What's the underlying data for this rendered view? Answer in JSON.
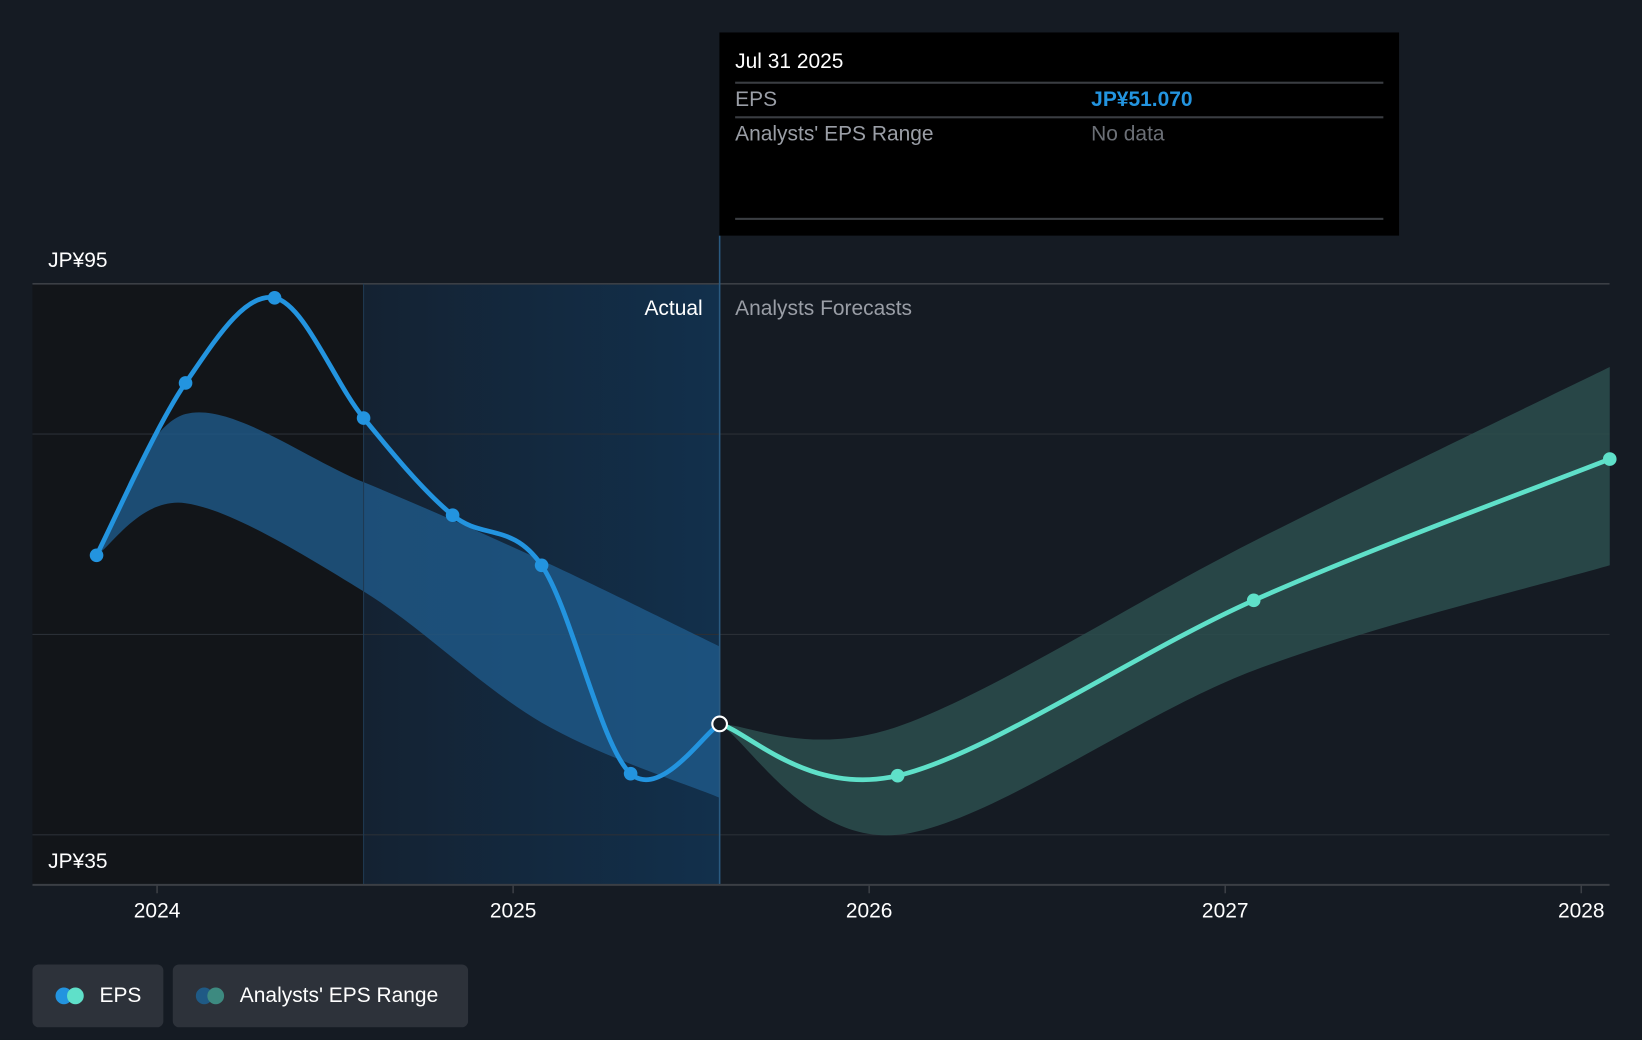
{
  "tooltip": {
    "date": "Jul 31 2025",
    "rows": [
      {
        "label": "EPS",
        "value": "JP¥51.070",
        "color": "#2394df"
      },
      {
        "label": "Analysts' EPS Range",
        "value": "No data",
        "color": "#6b6f76"
      }
    ]
  },
  "legend": [
    {
      "label": "EPS",
      "colors": [
        "#2394df",
        "#5fe0c9"
      ]
    },
    {
      "label": "Analysts' EPS Range",
      "colors": [
        "#1f5a85",
        "#3d8a80"
      ]
    }
  ],
  "chart_data": {
    "type": "line",
    "title": "",
    "xlabel": "",
    "ylabel": "EPS",
    "ylim": [
      35,
      95
    ],
    "xlim": [
      2023.65,
      2028.08
    ],
    "y_tick_labels": [
      {
        "value": 95,
        "label": "JP¥95"
      },
      {
        "value": 35,
        "label": "JP¥35"
      }
    ],
    "gridlines": [
      95,
      80,
      60,
      40
    ],
    "x_ticks": [
      {
        "value": 2024,
        "label": "2024"
      },
      {
        "value": 2025,
        "label": "2025"
      },
      {
        "value": 2026,
        "label": "2026"
      },
      {
        "value": 2027,
        "label": "2027"
      },
      {
        "value": 2028,
        "label": "2028"
      }
    ],
    "region_labels": {
      "actual": "Actual",
      "forecast": "Analysts Forecasts"
    },
    "divider_x": 2025.58,
    "past_year_start": 2024.58,
    "series": [
      {
        "name": "EPS (Actual)",
        "color": "#2394df",
        "x": [
          2023.83,
          2024.08,
          2024.33,
          2024.58,
          2024.83,
          2025.08,
          2025.33,
          2025.58
        ],
        "y": [
          67.9,
          85.1,
          93.6,
          81.6,
          71.9,
          66.9,
          46.1,
          51.07
        ]
      },
      {
        "name": "EPS (Forecast)",
        "color": "#5fe0c9",
        "x": [
          2025.58,
          2026.08,
          2027.08,
          2028.08
        ],
        "y": [
          51.07,
          45.9,
          63.4,
          77.5
        ]
      }
    ],
    "ranges": [
      {
        "name": "Analysts' EPS Range (past)",
        "color": "#1f5a8a",
        "x": [
          2023.83,
          2024.08,
          2024.58,
          2025.08,
          2025.58
        ],
        "high": [
          67.9,
          82.0,
          75.2,
          67.4,
          58.8
        ],
        "low": [
          67.9,
          73.1,
          64.3,
          51.2,
          43.7
        ]
      },
      {
        "name": "Analysts' EPS Range (forecast)",
        "color": "#2b4d4d",
        "x": [
          2025.58,
          2026.08,
          2027.08,
          2028.08
        ],
        "high": [
          51.07,
          50.8,
          69.3,
          86.7
        ],
        "low": [
          51.07,
          40.0,
          56.4,
          66.9
        ]
      }
    ]
  }
}
